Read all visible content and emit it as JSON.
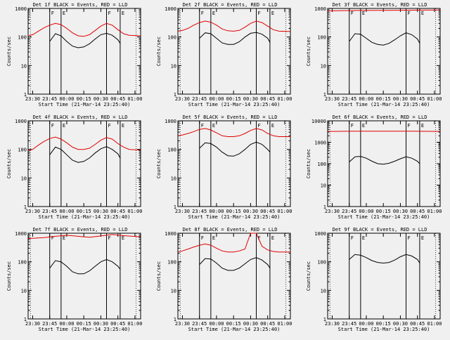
{
  "colors": {
    "events": "#000000",
    "lld": "#e00000",
    "background": "#f0f0f0",
    "axes": "#000000"
  },
  "ylabel": "Counts/sec",
  "xlabel": "Start Time (21-Mar-14 23:25:40)",
  "xticks": [
    "23:30",
    "23:45",
    "00:00",
    "00:15",
    "00:30",
    "00:45",
    "01:00"
  ],
  "markers": {
    "F": "F",
    "E": "E"
  },
  "chart_data": [
    {
      "type": "line",
      "title": "Det 1f BLACK = Events, RED = LLD",
      "yticks": [
        "1",
        "10",
        "100",
        "1000"
      ],
      "ylim": [
        1,
        1000
      ],
      "xlim_min": [
        -4,
        95
      ],
      "log_y": true,
      "event_lines_min": [
        15,
        25,
        65,
        77
      ],
      "series": [
        {
          "name": "Events",
          "color": "#000000",
          "x": [
            15,
            20,
            25,
            30,
            35,
            40,
            45,
            50,
            55,
            60,
            65,
            70,
            75,
            77
          ],
          "y": [
            70,
            130,
            110,
            70,
            48,
            42,
            45,
            58,
            85,
            120,
            135,
            115,
            80,
            60
          ]
        },
        {
          "name": "LLD",
          "color": "#e00000",
          "x": [
            -4,
            0,
            5,
            10,
            15,
            20,
            25,
            30,
            35,
            40,
            45,
            50,
            55,
            60,
            65,
            70,
            75,
            80,
            85,
            95
          ],
          "y": [
            110,
            120,
            160,
            210,
            260,
            300,
            270,
            200,
            140,
            110,
            105,
            120,
            170,
            240,
            300,
            260,
            180,
            130,
            115,
            110
          ]
        }
      ]
    },
    {
      "type": "line",
      "title": "Det 2f BLACK = Events, RED = LLD",
      "yticks": [
        "1",
        "10",
        "100",
        "1000"
      ],
      "ylim": [
        1,
        1000
      ],
      "xlim_min": [
        -4,
        95
      ],
      "log_y": true,
      "event_lines_min": [
        15,
        25,
        65,
        77
      ],
      "series": [
        {
          "name": "Events",
          "color": "#000000",
          "x": [
            15,
            20,
            25,
            30,
            35,
            40,
            45,
            50,
            55,
            60,
            65,
            70,
            75,
            77
          ],
          "y": [
            90,
            140,
            130,
            90,
            62,
            55,
            55,
            68,
            100,
            135,
            145,
            125,
            90,
            65
          ]
        },
        {
          "name": "LLD",
          "color": "#e00000",
          "x": [
            -4,
            0,
            5,
            10,
            15,
            20,
            25,
            30,
            35,
            40,
            45,
            50,
            55,
            60,
            65,
            70,
            75,
            80,
            85,
            95
          ],
          "y": [
            160,
            170,
            200,
            260,
            320,
            360,
            330,
            260,
            190,
            165,
            160,
            170,
            220,
            300,
            360,
            320,
            240,
            180,
            160,
            155
          ]
        }
      ]
    },
    {
      "type": "line",
      "title": "Det 3f BLACK = Events, RED = LLD",
      "yticks": [
        "1",
        "10",
        "100",
        "1000"
      ],
      "ylim": [
        1,
        1000
      ],
      "xlim_min": [
        -4,
        95
      ],
      "log_y": true,
      "event_lines_min": [
        15,
        25,
        65,
        77
      ],
      "series": [
        {
          "name": "Events",
          "color": "#000000",
          "x": [
            15,
            20,
            25,
            30,
            35,
            40,
            45,
            50,
            55,
            60,
            65,
            70,
            75,
            77
          ],
          "y": [
            70,
            130,
            125,
            90,
            65,
            55,
            52,
            60,
            80,
            110,
            140,
            120,
            85,
            60
          ]
        },
        {
          "name": "LLD",
          "color": "#e00000",
          "x": [
            -4,
            20,
            45,
            70,
            95
          ],
          "y": [
            820,
            850,
            860,
            870,
            880
          ]
        }
      ]
    },
    {
      "type": "line",
      "title": "Det 4f BLACK = Events, RED = LLD",
      "yticks": [
        "1",
        "10",
        "100",
        "1000"
      ],
      "ylim": [
        1,
        1000
      ],
      "xlim_min": [
        -4,
        95
      ],
      "log_y": true,
      "event_lines_min": [
        15,
        25,
        65,
        77
      ],
      "series": [
        {
          "name": "Events",
          "color": "#000000",
          "x": [
            15,
            20,
            25,
            30,
            35,
            40,
            45,
            50,
            55,
            60,
            65,
            70,
            75,
            77
          ],
          "y": [
            65,
            120,
            100,
            65,
            42,
            35,
            38,
            50,
            75,
            105,
            125,
            100,
            70,
            50
          ]
        },
        {
          "name": "LLD",
          "color": "#e00000",
          "x": [
            -4,
            0,
            5,
            10,
            15,
            20,
            25,
            30,
            35,
            40,
            45,
            50,
            55,
            60,
            65,
            70,
            75,
            80,
            85,
            95
          ],
          "y": [
            90,
            100,
            140,
            190,
            240,
            270,
            230,
            170,
            120,
            100,
            100,
            110,
            150,
            210,
            260,
            230,
            160,
            120,
            100,
            95
          ]
        }
      ]
    },
    {
      "type": "line",
      "title": "Det 5f BLACK = Events, RED = LLD",
      "yticks": [
        "1",
        "10",
        "100",
        "1000"
      ],
      "ylim": [
        1,
        1000
      ],
      "xlim_min": [
        -4,
        95
      ],
      "log_y": true,
      "event_lines_min": [
        15,
        25,
        65,
        77
      ],
      "series": [
        {
          "name": "Events",
          "color": "#000000",
          "x": [
            15,
            20,
            25,
            30,
            35,
            40,
            45,
            50,
            55,
            60,
            65,
            70,
            75,
            77
          ],
          "y": [
            110,
            170,
            160,
            120,
            80,
            60,
            58,
            70,
            100,
            150,
            180,
            150,
            100,
            80
          ]
        },
        {
          "name": "LLD",
          "color": "#e00000",
          "x": [
            -4,
            0,
            5,
            10,
            15,
            20,
            25,
            30,
            35,
            40,
            45,
            50,
            55,
            60,
            65,
            70,
            75,
            80,
            85,
            95
          ],
          "y": [
            300,
            320,
            360,
            420,
            500,
            540,
            480,
            380,
            300,
            280,
            280,
            300,
            360,
            460,
            540,
            480,
            360,
            300,
            280,
            280
          ]
        }
      ]
    },
    {
      "type": "line",
      "title": "Det 6f BLACK = Events, RED = LLD",
      "yticks": [
        "1",
        "10",
        "100",
        "1000",
        "10000"
      ],
      "ylim": [
        1,
        10000
      ],
      "xlim_min": [
        -4,
        95
      ],
      "log_y": true,
      "event_lines_min": [
        15,
        25,
        65,
        77
      ],
      "series": [
        {
          "name": "Events",
          "color": "#000000",
          "x": [
            15,
            20,
            25,
            30,
            35,
            40,
            45,
            50,
            55,
            60,
            65,
            70,
            75,
            77
          ],
          "y": [
            120,
            210,
            220,
            180,
            130,
            100,
            95,
            105,
            130,
            170,
            210,
            180,
            130,
            100
          ]
        },
        {
          "name": "LLD",
          "color": "#e00000",
          "x": [
            -4,
            20,
            45,
            70,
            95
          ],
          "y": [
            3200,
            3300,
            3300,
            3300,
            3200
          ]
        }
      ]
    },
    {
      "type": "line",
      "title": "Det 7f BLACK = Events, RED = LLD",
      "yticks": [
        "1",
        "10",
        "100",
        "1000"
      ],
      "ylim": [
        1,
        1000
      ],
      "xlim_min": [
        -4,
        95
      ],
      "log_y": true,
      "event_lines_min": [
        15,
        25,
        65,
        77
      ],
      "series": [
        {
          "name": "Events",
          "color": "#000000",
          "x": [
            15,
            20,
            25,
            30,
            35,
            40,
            45,
            50,
            55,
            60,
            65,
            70,
            75,
            77
          ],
          "y": [
            60,
            110,
            100,
            70,
            45,
            38,
            38,
            48,
            70,
            100,
            120,
            100,
            70,
            55
          ]
        },
        {
          "name": "LLD",
          "color": "#e00000",
          "x": [
            -4,
            10,
            20,
            30,
            40,
            50,
            60,
            70,
            80,
            95
          ],
          "y": [
            650,
            700,
            780,
            850,
            780,
            720,
            800,
            900,
            820,
            750
          ]
        }
      ]
    },
    {
      "type": "line",
      "title": "Det 8f BLACK = Events, RED = LLD",
      "yticks": [
        "1",
        "10",
        "100",
        "1000"
      ],
      "ylim": [
        1,
        1000
      ],
      "xlim_min": [
        -4,
        95
      ],
      "log_y": true,
      "event_lines_min": [
        15,
        25,
        65,
        77
      ],
      "series": [
        {
          "name": "Events",
          "color": "#000000",
          "x": [
            15,
            20,
            25,
            30,
            35,
            40,
            45,
            50,
            55,
            60,
            65,
            70,
            75,
            77
          ],
          "y": [
            80,
            130,
            125,
            90,
            60,
            50,
            50,
            60,
            85,
            120,
            140,
            115,
            80,
            60
          ]
        },
        {
          "name": "LLD",
          "color": "#e00000",
          "x": [
            -4,
            0,
            5,
            10,
            15,
            20,
            25,
            30,
            35,
            40,
            45,
            50,
            55,
            60,
            65,
            70,
            75,
            80,
            85,
            95
          ],
          "y": [
            220,
            240,
            280,
            330,
            380,
            420,
            380,
            300,
            240,
            220,
            220,
            240,
            280,
            1000,
            1000,
            350,
            260,
            230,
            220,
            220
          ]
        }
      ]
    },
    {
      "type": "line",
      "title": "Det 9f BLACK = Events, RED = LLD",
      "yticks": [
        "1",
        "10",
        "100",
        "1000"
      ],
      "ylim": [
        1,
        1000
      ],
      "xlim_min": [
        -4,
        95
      ],
      "log_y": true,
      "event_lines_min": [
        15,
        25,
        65,
        77
      ],
      "series": [
        {
          "name": "Events",
          "color": "#000000",
          "x": [
            15,
            20,
            25,
            30,
            35,
            40,
            45,
            50,
            55,
            60,
            65,
            70,
            75,
            77
          ],
          "y": [
            120,
            180,
            170,
            140,
            110,
            95,
            90,
            95,
            115,
            150,
            180,
            160,
            120,
            90
          ]
        }
      ]
    }
  ]
}
